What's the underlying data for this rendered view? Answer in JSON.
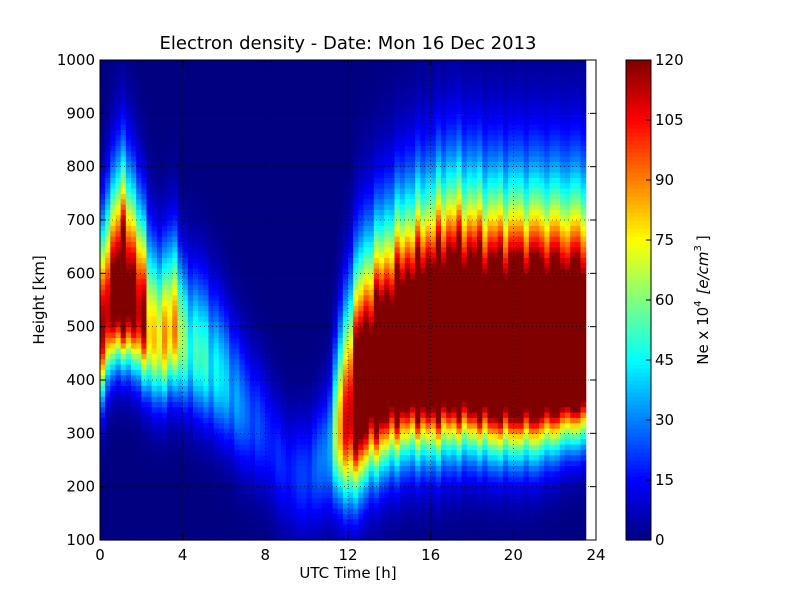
{
  "chart_data": {
    "type": "heatmap",
    "title": "Electron density - Date: Mon 16 Dec 2013",
    "xlabel": "UTC Time [h]",
    "ylabel": "Height [km]",
    "xlim": [
      0,
      24
    ],
    "ylim": [
      100,
      1000
    ],
    "x_ticks": [
      "0",
      "4",
      "8",
      "12",
      "16",
      "20",
      "24"
    ],
    "y_ticks": [
      "100",
      "200",
      "300",
      "400",
      "500",
      "600",
      "700",
      "800",
      "900",
      "1000"
    ],
    "grid": true,
    "colormap": "jet",
    "colorbar": {
      "label_main": "Ne x 10",
      "label_exp": "4",
      "label_unit_open": "[e/cm",
      "label_unit_exp": "3",
      "label_unit_close": "]",
      "range": [
        0,
        120
      ],
      "ticks": [
        "0",
        "15",
        "30",
        "45",
        "60",
        "75",
        "90",
        "105",
        "120"
      ]
    },
    "data_extent_x": [
      0,
      23.5
    ],
    "profile_keyframes": {
      "hour": [
        0,
        0.5,
        1,
        1.5,
        2,
        2.5,
        3,
        3.5,
        4,
        5,
        6,
        7,
        8,
        9,
        10,
        11,
        11.5,
        12,
        12.5,
        13,
        14,
        15,
        16,
        17,
        18,
        19,
        20,
        21,
        22,
        23,
        23.5
      ],
      "peak_height_km": [
        480,
        540,
        560,
        545,
        520,
        480,
        470,
        500,
        470,
        440,
        400,
        340,
        300,
        230,
        220,
        260,
        300,
        320,
        360,
        390,
        420,
        440,
        440,
        450,
        440,
        430,
        430,
        430,
        430,
        430,
        430
      ],
      "peak_density": [
        90,
        130,
        150,
        140,
        110,
        85,
        70,
        100,
        55,
        50,
        40,
        28,
        20,
        18,
        22,
        30,
        70,
        120,
        150,
        160,
        170,
        180,
        190,
        195,
        195,
        195,
        195,
        195,
        190,
        185,
        185
      ],
      "bottom_halfwidth_km": [
        120,
        110,
        110,
        110,
        110,
        110,
        110,
        110,
        110,
        110,
        110,
        110,
        110,
        110,
        110,
        110,
        120,
        140,
        150,
        150,
        150,
        150,
        150,
        150,
        140,
        140,
        140,
        140,
        130,
        120,
        120
      ],
      "top_halfwidth_km": [
        180,
        200,
        220,
        210,
        190,
        170,
        160,
        170,
        150,
        150,
        140,
        130,
        120,
        110,
        110,
        120,
        180,
        220,
        240,
        240,
        250,
        260,
        270,
        280,
        280,
        280,
        280,
        280,
        280,
        280,
        280
      ]
    }
  }
}
